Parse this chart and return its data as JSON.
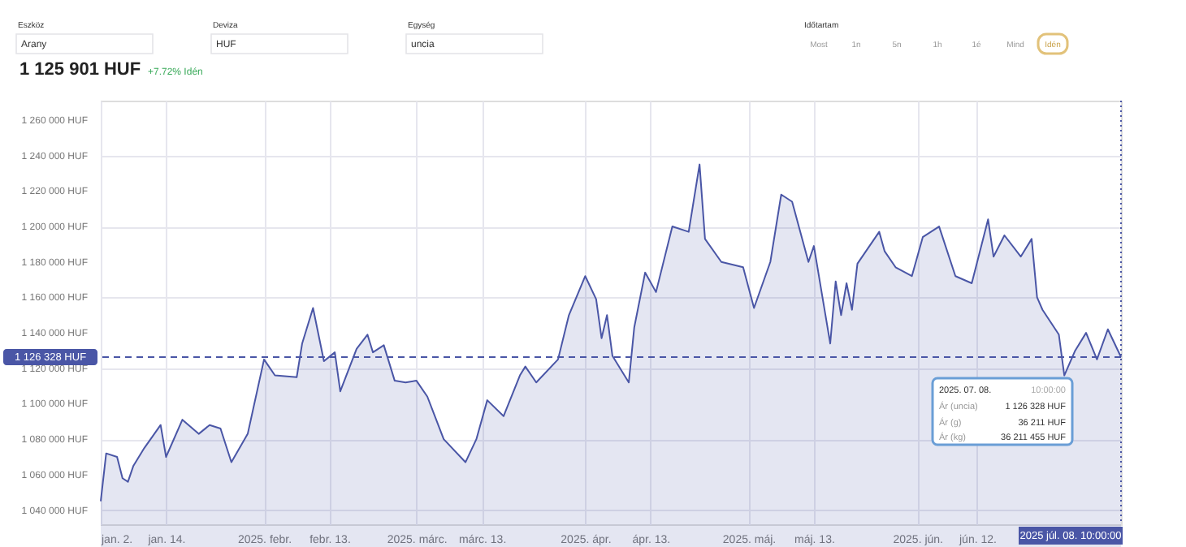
{
  "chart_data": {
    "type": "area",
    "title": "1 125 901 HUF",
    "subtitle": "+7.72% Idén",
    "annotations": [
      "Eszköz",
      "Arany",
      "Deviza",
      "HUF",
      "Egység",
      "uncia",
      "Időtartam",
      "Most",
      "1n",
      "5n",
      "1h",
      "1é",
      "Mind",
      "Idén",
      "2025. 07. 08.",
      "10:00:00",
      "Ár (uncia)",
      "1 126 328 HUF",
      "Ár (g)",
      "36 211 HUF",
      "Ár (kg)",
      "36 211 455 HUF"
    ],
    "x": [
      "2025-01-02",
      "2025-01-03",
      "2025-01-05",
      "2025-01-06",
      "2025-01-07",
      "2025-01-08",
      "2025-01-10",
      "2025-01-13",
      "2025-01-14",
      "2025-01-17",
      "2025-01-20",
      "2025-01-22",
      "2025-01-24",
      "2025-01-26",
      "2025-01-29",
      "2025-02-01",
      "2025-02-03",
      "2025-02-07",
      "2025-02-08",
      "2025-02-10",
      "2025-02-12",
      "2025-02-14",
      "2025-02-15",
      "2025-02-18",
      "2025-02-20",
      "2025-02-21",
      "2025-02-23",
      "2025-02-25",
      "2025-02-27",
      "2025-03-01",
      "2025-03-03",
      "2025-03-06",
      "2025-03-10",
      "2025-03-12",
      "2025-03-14",
      "2025-03-17",
      "2025-03-20",
      "2025-03-21",
      "2025-03-23",
      "2025-03-27",
      "2025-03-29",
      "2025-04-01",
      "2025-04-03",
      "2025-04-04",
      "2025-04-05",
      "2025-04-06",
      "2025-04-09",
      "2025-04-10",
      "2025-04-12",
      "2025-04-14",
      "2025-04-17",
      "2025-04-20",
      "2025-04-22",
      "2025-04-23",
      "2025-04-26",
      "2025-04-30",
      "2025-05-02",
      "2025-05-05",
      "2025-05-07",
      "2025-05-09",
      "2025-05-12",
      "2025-05-13",
      "2025-05-16",
      "2025-05-17",
      "2025-05-18",
      "2025-05-19",
      "2025-05-20",
      "2025-05-21",
      "2025-05-25",
      "2025-05-26",
      "2025-05-28",
      "2025-05-31",
      "2025-06-02",
      "2025-06-05",
      "2025-06-08",
      "2025-06-11",
      "2025-06-14",
      "2025-06-15",
      "2025-06-17",
      "2025-06-20",
      "2025-06-22",
      "2025-06-23",
      "2025-06-24",
      "2025-06-27",
      "2025-06-28",
      "2025-06-30",
      "2025-07-02",
      "2025-07-04",
      "2025-07-06",
      "2025-07-08T10:00"
    ],
    "series": [
      {
        "color": "#4a56a6",
        "values": [
          1045000,
          1072000,
          1070000,
          1058000,
          1056000,
          1065000,
          1075000,
          1088000,
          1070000,
          1091000,
          1083000,
          1088000,
          1086000,
          1067000,
          1083000,
          1125000,
          1116000,
          1115000,
          1134000,
          1154000,
          1124000,
          1129000,
          1107000,
          1131000,
          1139000,
          1129000,
          1133000,
          1113000,
          1112000,
          1113000,
          1104000,
          1080000,
          1067000,
          1080000,
          1102000,
          1093000,
          1116000,
          1121000,
          1112000,
          1125000,
          1150000,
          1172000,
          1159000,
          1137000,
          1150000,
          1127000,
          1112000,
          1143000,
          1174000,
          1163000,
          1200000,
          1197000,
          1235000,
          1193000,
          1180000,
          1177000,
          1154000,
          1180000,
          1218000,
          1214000,
          1180000,
          1189000,
          1134000,
          1169000,
          1150000,
          1168000,
          1153000,
          1179000,
          1197000,
          1186000,
          1177000,
          1172000,
          1194000,
          1200000,
          1172000,
          1168000,
          1204000,
          1183000,
          1195000,
          1183000,
          1193000,
          1160000,
          1153000,
          1139000,
          1116000,
          1130000,
          1140000,
          1125000,
          1142000,
          1126328
        ]
      }
    ],
    "xlim": [
      "2025-01-02",
      "2025-07-08T10:00"
    ],
    "xticks": [
      {
        "value": "2025-01-02",
        "label": "jan. 2."
      },
      {
        "value": "2025-01-14",
        "label": "jan. 14."
      },
      {
        "value": "2025-02-01",
        "label": "2025. febr."
      },
      {
        "value": "2025-02-13",
        "label": "febr. 13."
      },
      {
        "value": "2025-03-01",
        "label": "2025. márc."
      },
      {
        "value": "2025-03-13",
        "label": "márc. 13."
      },
      {
        "value": "2025-04-01",
        "label": "2025. ápr."
      },
      {
        "value": "2025-04-13",
        "label": "ápr. 13."
      },
      {
        "value": "2025-05-01",
        "label": "2025. máj."
      },
      {
        "value": "2025-05-13",
        "label": "máj. 13."
      },
      {
        "value": "2025-06-01",
        "label": "2025. jún."
      },
      {
        "value": "2025-06-12",
        "label": "jún. 12."
      }
    ],
    "ylim": [
      1032000,
      1271000
    ],
    "yticks": [
      {
        "value": 1040000,
        "label": "1 040 000 HUF"
      },
      {
        "value": 1060000,
        "label": "1 060 000 HUF"
      },
      {
        "value": 1080000,
        "label": "1 080 000 HUF"
      },
      {
        "value": 1100000,
        "label": "1 100 000 HUF"
      },
      {
        "value": 1120000,
        "label": "1 120 000 HUF"
      },
      {
        "value": 1140000,
        "label": "1 140 000 HUF"
      },
      {
        "value": 1160000,
        "label": "1 160 000 HUF"
      },
      {
        "value": 1180000,
        "label": "1 180 000 HUF"
      },
      {
        "value": 1200000,
        "label": "1 200 000 HUF"
      },
      {
        "value": 1220000,
        "label": "1 220 000 HUF"
      },
      {
        "value": 1240000,
        "label": "1 240 000 HUF"
      },
      {
        "value": 1260000,
        "label": "1 260 000 HUF"
      }
    ],
    "ref_lines": [
      {
        "axis": "y",
        "value": 1126328,
        "label": "1 126 328 HUF",
        "color": "#4a56a6",
        "line_style": "dashed"
      },
      {
        "axis": "x",
        "value": "2025-07-08T10:00",
        "label": "2025 júl. 08. 10:00:00",
        "color": "#4a56a6",
        "line_style": "dotted"
      }
    ],
    "grid": true
  }
}
